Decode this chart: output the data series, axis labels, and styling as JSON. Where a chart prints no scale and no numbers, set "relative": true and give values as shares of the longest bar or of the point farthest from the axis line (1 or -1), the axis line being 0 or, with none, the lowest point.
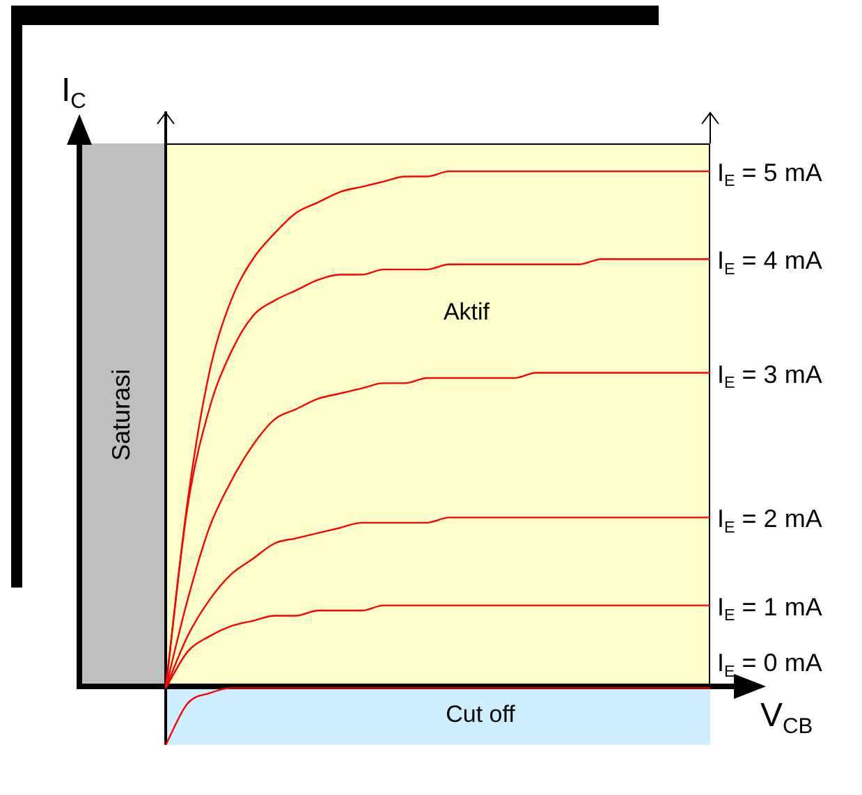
{
  "chart_data": {
    "type": "line",
    "relative": true,
    "xlabel": "V$_{CB}$",
    "ylabel": "I$_{C}$",
    "legend": false,
    "marker": "none",
    "line_style": "solid",
    "grid": false,
    "categories": [
      null,
      null,
      null,
      null,
      null,
      null,
      null,
      null,
      null,
      null,
      null,
      null,
      null,
      null,
      null,
      null,
      null,
      null,
      null,
      null,
      null,
      null,
      null,
      null,
      null,
      null
    ],
    "series": [
      {
        "name": "I$_{E}$ = 5 mA",
        "color": "#ff0000",
        "values": [
          0,
          0.36,
          0.61,
          0.75,
          0.83,
          0.88,
          0.92,
          0.94,
          0.96,
          0.97,
          0.98,
          0.99,
          0.99,
          1,
          1,
          1,
          1,
          1,
          1,
          1,
          1,
          1,
          1,
          1,
          1,
          1
        ]
      },
      {
        "name": "I$_{E}$ = 4 mA",
        "color": "#ff0000",
        "values": [
          0,
          0.35,
          0.54,
          0.65,
          0.72,
          0.75,
          0.77,
          0.79,
          0.8,
          0.8,
          0.81,
          0.81,
          0.81,
          0.82,
          0.82,
          0.82,
          0.82,
          0.82,
          0.82,
          0.82,
          0.83,
          0.83,
          0.83,
          0.83,
          0.83,
          0.83
        ]
      },
      {
        "name": "I$_{E}$ = 3 mA",
        "color": "#ff0000",
        "values": [
          0,
          0.17,
          0.31,
          0.4,
          0.47,
          0.52,
          0.54,
          0.56,
          0.57,
          0.58,
          0.59,
          0.59,
          0.6,
          0.6,
          0.6,
          0.6,
          0.6,
          0.61,
          0.61,
          0.61,
          0.61,
          0.61,
          0.61,
          0.61,
          0.61,
          0.61
        ]
      },
      {
        "name": "I$_{E}$ = 2 mA",
        "color": "#ff0000",
        "values": [
          0,
          0.1,
          0.17,
          0.22,
          0.25,
          0.28,
          0.29,
          0.3,
          0.31,
          0.32,
          0.32,
          0.32,
          0.32,
          0.33,
          0.33,
          0.33,
          0.33,
          0.33,
          0.33,
          0.33,
          0.33,
          0.33,
          0.33,
          0.33,
          0.33,
          0.33
        ]
      },
      {
        "name": "I$_{E}$ = 1 mA",
        "color": "#ff0000",
        "values": [
          0,
          0.07,
          0.1,
          0.12,
          0.13,
          0.14,
          0.14,
          0.15,
          0.15,
          0.15,
          0.16,
          0.16,
          0.16,
          0.16,
          0.16,
          0.16,
          0.16,
          0.16,
          0.16,
          0.16,
          0.16,
          0.16,
          0.16,
          0.16,
          0.16,
          0.16
        ]
      },
      {
        "name": "I$_{E}$ = 0 mA",
        "color": "#ff0000",
        "values": [
          -0.11,
          -0.03,
          -0.01,
          0,
          0,
          0,
          0,
          0,
          0,
          0,
          0,
          0,
          0,
          0,
          0,
          0,
          0,
          0,
          0,
          0,
          0,
          0,
          0,
          0,
          0,
          0
        ]
      }
    ],
    "annotations": [
      "Saturasi",
      "Aktif",
      "Cut off"
    ]
  }
}
